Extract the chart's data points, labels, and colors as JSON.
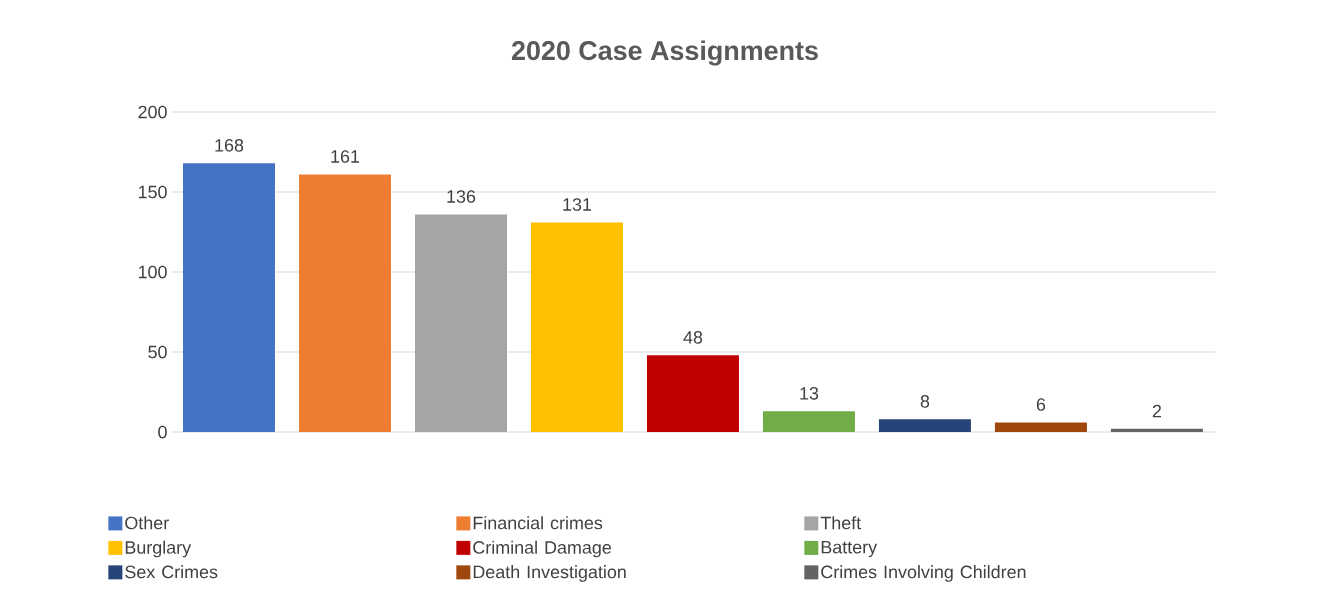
{
  "chart_data": {
    "type": "bar",
    "title": "2020 Case Assignments",
    "categories": [
      null,
      null,
      null,
      null,
      null,
      null,
      null,
      null,
      null
    ],
    "series": [
      {
        "name": "Other",
        "color": "#4472c4",
        "values": [
          168,
          null,
          null,
          null,
          null,
          null,
          null,
          null,
          null
        ]
      },
      {
        "name": "Financial crimes",
        "color": "#ed7d31",
        "values": [
          null,
          161,
          null,
          null,
          null,
          null,
          null,
          null,
          null
        ]
      },
      {
        "name": "Theft",
        "color": "#a5a5a5",
        "values": [
          null,
          null,
          136,
          null,
          null,
          null,
          null,
          null,
          null
        ]
      },
      {
        "name": "Burglary",
        "color": "#ffc000",
        "values": [
          null,
          null,
          null,
          131,
          null,
          null,
          null,
          null,
          null
        ]
      },
      {
        "name": "Criminal Damage",
        "color": "#c00000",
        "values": [
          null,
          null,
          null,
          null,
          48,
          null,
          null,
          null,
          null
        ]
      },
      {
        "name": "Battery",
        "color": "#70ad47",
        "values": [
          null,
          null,
          null,
          null,
          null,
          13,
          null,
          null,
          null
        ]
      },
      {
        "name": "Sex Crimes",
        "color": "#264478",
        "values": [
          null,
          null,
          null,
          null,
          null,
          null,
          8,
          null,
          null
        ]
      },
      {
        "name": "Death Investigation",
        "color": "#9e480e",
        "values": [
          null,
          null,
          null,
          null,
          null,
          null,
          null,
          6,
          null
        ]
      },
      {
        "name": "Crimes Involving Children",
        "color": "#636363",
        "values": [
          null,
          null,
          null,
          null,
          null,
          null,
          null,
          null,
          2
        ]
      }
    ],
    "ylim": [
      0,
      200
    ],
    "yticks": [
      0,
      50,
      100,
      150,
      200
    ],
    "grid": "y",
    "legend": "bottom",
    "data_labels": true,
    "tick_labels": "y"
  }
}
